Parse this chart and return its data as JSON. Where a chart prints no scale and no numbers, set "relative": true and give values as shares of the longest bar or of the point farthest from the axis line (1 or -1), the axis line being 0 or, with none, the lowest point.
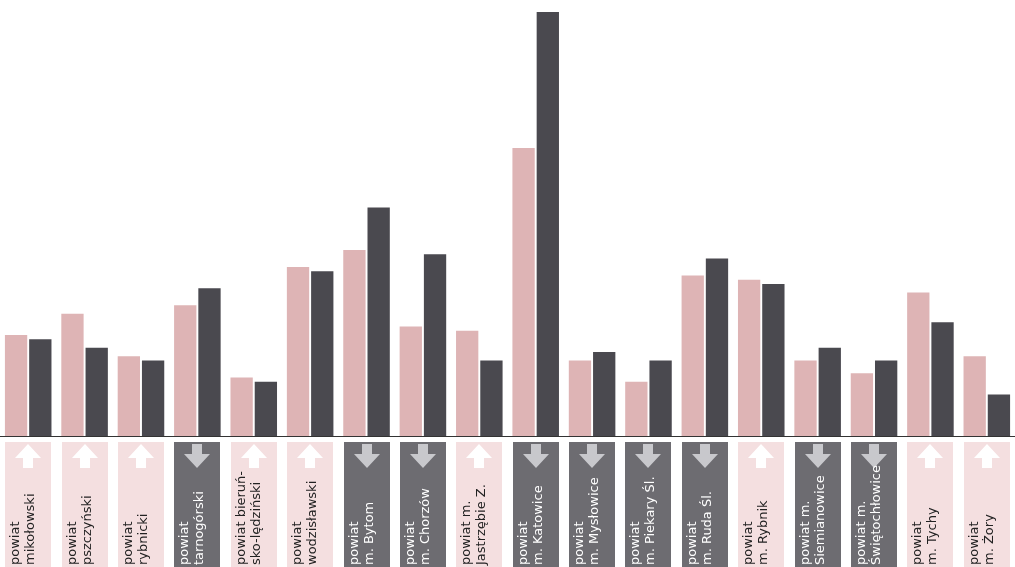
{
  "chart_data": {
    "type": "bar",
    "relative": true,
    "legend": false,
    "categories": [
      "powiat\nmikołowski",
      "powiat\npszczyński",
      "powiat\nrybnicki",
      "powiat\ntarnogórski",
      "powiat bieruń-\nsko-lędziński",
      "powiat\nwodzisławski",
      "powiat\nm. Bytom",
      "powiat\nm. Chorzów",
      "powiat m.\nJastrzębie Z.",
      "powiat\nm. Katowice",
      "powiat\nm. Mysłowice",
      "powiat\nm. Piekary Śl.",
      "powiat\nm. Ruda Śl.",
      "powiat\nm. Rybnik",
      "powiat m.\nSiemianowice",
      "powiat m.\nŚwiętochłowice",
      "powiat\nm. Tychy",
      "powiat\nm. Żory"
    ],
    "series": [
      {
        "color": "#deb4b5",
        "values": [
          0.24,
          0.29,
          0.19,
          0.31,
          0.14,
          0.4,
          0.44,
          0.26,
          0.25,
          0.68,
          0.18,
          0.13,
          0.38,
          0.37,
          0.18,
          0.15,
          0.34,
          0.19
        ]
      },
      {
        "color": "#4a494f",
        "values": [
          0.23,
          0.21,
          0.18,
          0.35,
          0.13,
          0.39,
          0.54,
          0.43,
          0.18,
          1,
          0.2,
          0.18,
          0.42,
          0.36,
          0.21,
          0.18,
          0.27,
          0.1
        ]
      }
    ]
  }
}
